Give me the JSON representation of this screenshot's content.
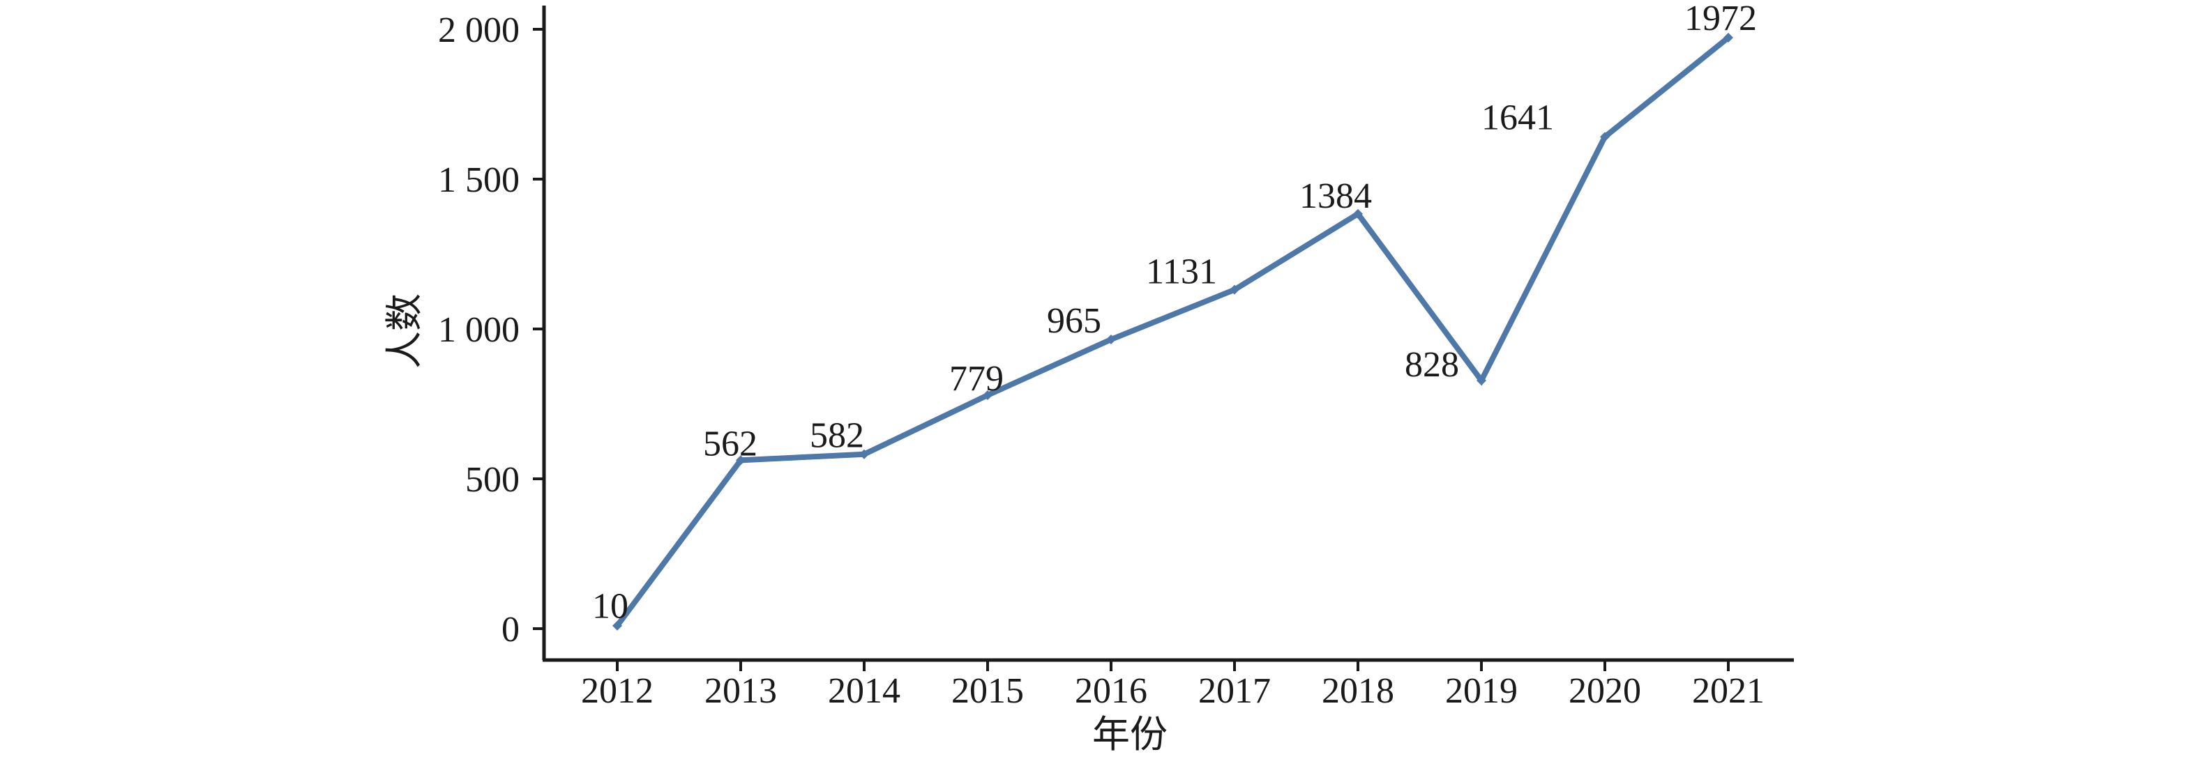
{
  "chart_data": {
    "type": "line",
    "title": "",
    "xlabel": "年份",
    "ylabel": "人数",
    "categories": [
      "2012",
      "2013",
      "2014",
      "2015",
      "2016",
      "2017",
      "2018",
      "2019",
      "2020",
      "2021"
    ],
    "series": [
      {
        "name": "人数",
        "values": [
          10,
          562,
          582,
          779,
          965,
          1131,
          1384,
          828,
          1641,
          1972
        ],
        "point_labels": [
          "10",
          "562",
          "582",
          "779",
          "965",
          "1131",
          "1384",
          "828",
          "1641",
          "1972"
        ]
      }
    ],
    "ylim": [
      0,
      2000
    ],
    "ytick_values": [
      0,
      500,
      1000,
      1500,
      2000
    ],
    "ytick_labels": [
      "0",
      "500",
      "1 000",
      "1 500",
      "2 000"
    ],
    "grid": false,
    "legend_position": "none",
    "marker": "diamond",
    "colors": {
      "line": "#4e78a8",
      "axis": "#1a1a1a",
      "text": "#1a1a1a",
      "background": "#ffffff"
    }
  }
}
